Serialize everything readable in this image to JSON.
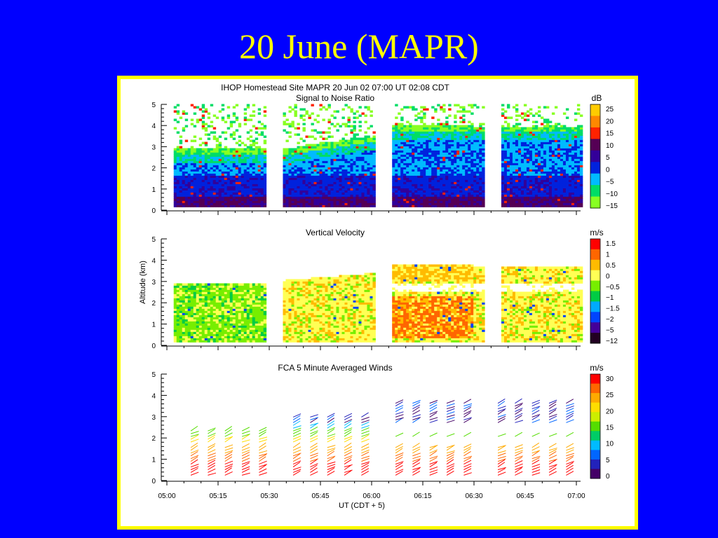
{
  "slide": {
    "title": "20 June (MAPR)"
  },
  "figure": {
    "header": "IHOP Homestead Site   MAPR 20 Jun 02    07:00 UT   02:08   CDT",
    "ylabel": "Altitude (km)",
    "xlabel": "UT  (CDT + 5)",
    "x_ticks": [
      "05:00",
      "05:15",
      "05:30",
      "05:45",
      "06:00",
      "06:15",
      "06:30",
      "06:45",
      "07:00"
    ]
  },
  "chart_data": [
    {
      "type": "heatmap",
      "title": "Signal to Noise Ratio",
      "unit": "dB",
      "x_range": [
        "05:00",
        "07:00"
      ],
      "ylim": [
        0,
        5
      ],
      "y_ticks": [
        0,
        1,
        2,
        3,
        4,
        5
      ],
      "data_segments": [
        [
          "05:02",
          "05:29"
        ],
        [
          "05:34",
          "06:01"
        ],
        [
          "06:06",
          "06:33"
        ],
        [
          "06:38",
          "07:05"
        ]
      ],
      "colorbar": {
        "labels": [
          "25",
          "20",
          "15",
          "10",
          "5",
          "0",
          "−5",
          "−10",
          "−15"
        ],
        "colors": [
          "#ffcc00",
          "#ff8800",
          "#ff2200",
          "#550055",
          "#330099",
          "#0022dd",
          "#00bbff",
          "#00dd66",
          "#88ff22"
        ]
      }
    },
    {
      "type": "heatmap",
      "title": "Vertical Velocity",
      "unit": "m/s",
      "x_range": [
        "05:00",
        "07:00"
      ],
      "ylim": [
        0,
        5
      ],
      "y_ticks": [
        0,
        1,
        2,
        3,
        4,
        5
      ],
      "data_segments": [
        [
          "05:02",
          "05:29"
        ],
        [
          "05:34",
          "06:01"
        ],
        [
          "06:06",
          "06:33"
        ],
        [
          "06:38",
          "07:05"
        ]
      ],
      "colorbar": {
        "labels": [
          "1.5",
          "1",
          "0.5",
          "0",
          "−0.5",
          "−1",
          "−1.5",
          "−2",
          "−5",
          "−12"
        ],
        "colors": [
          "#ff0000",
          "#ff6600",
          "#ffbb00",
          "#ffff55",
          "#77ee00",
          "#00cc44",
          "#00aaff",
          "#0044ff",
          "#440099",
          "#220022"
        ]
      }
    },
    {
      "type": "scatter",
      "title": "FCA 5 Minute Averaged Winds",
      "unit": "m/s",
      "x_range": [
        "05:00",
        "07:00"
      ],
      "ylim": [
        0,
        5
      ],
      "y_ticks": [
        0,
        1,
        2,
        3,
        4,
        5
      ],
      "colorbar": {
        "labels": [
          "30",
          "25",
          "20",
          "15",
          "10",
          "5",
          "0"
        ],
        "colors": [
          "#ff0000",
          "#ff6600",
          "#ffaa00",
          "#ffdd00",
          "#ccee00",
          "#55dd00",
          "#00cc66",
          "#00bbff",
          "#0066ff",
          "#2222bb",
          "#440066"
        ]
      }
    }
  ]
}
